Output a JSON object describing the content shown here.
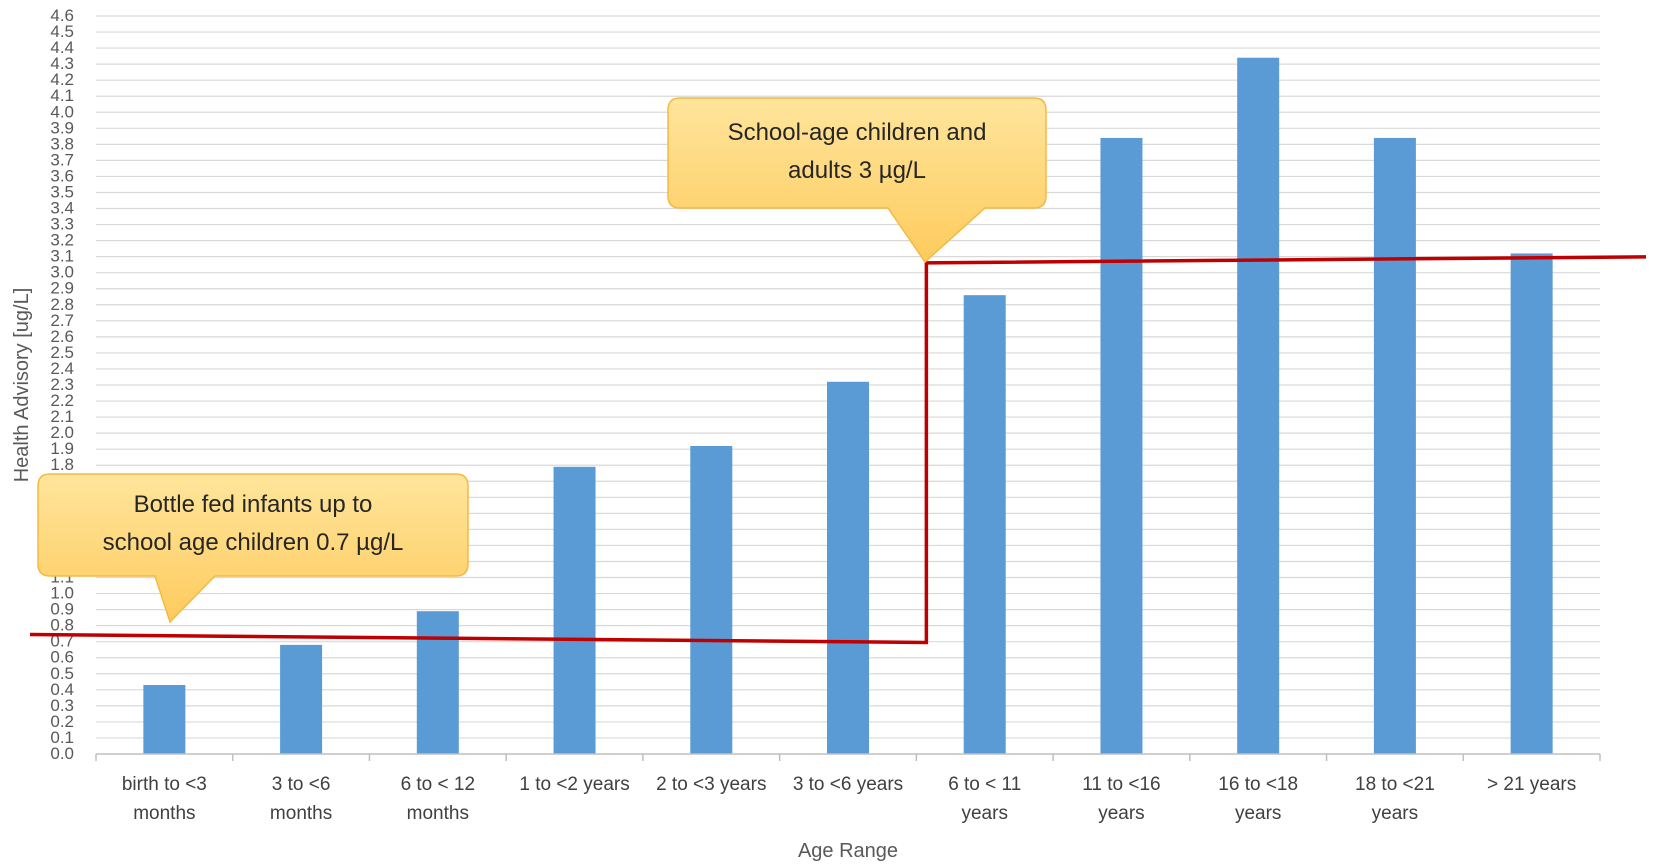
{
  "chart_data": {
    "type": "bar",
    "title": "",
    "xlabel": "Age Range",
    "ylabel": "Health Advisory [ug/L]",
    "ylim": [
      0,
      4.6
    ],
    "ytick_step": 0.1,
    "grid": true,
    "categories": [
      [
        "birth to <3",
        "months"
      ],
      [
        "3 to <6",
        "months"
      ],
      [
        "6 to < 12",
        "months"
      ],
      [
        "1 to <2 years"
      ],
      [
        "2 to <3 years"
      ],
      [
        "3 to <6 years"
      ],
      [
        "6 to < 11",
        "years"
      ],
      [
        "11 to <16",
        "years"
      ],
      [
        "16 to <18",
        "years"
      ],
      [
        "18 to <21",
        "years"
      ],
      [
        "> 21 years"
      ]
    ],
    "series": [
      {
        "values": [
          0.43,
          0.68,
          0.89,
          1.79,
          1.92,
          2.32,
          2.86,
          3.84,
          4.34,
          3.84,
          3.12
        ],
        "color": "#5b9bd5"
      }
    ],
    "threshold_line": {
      "color": "#c00000",
      "segments": [
        {
          "from_category": 0,
          "to_category": 5,
          "value": 0.72
        },
        {
          "from_category": 6,
          "to_category": 10,
          "value": 3.08
        }
      ]
    },
    "annotations": [
      {
        "lines": [
          "Bottle fed infants up to",
          "school age children 0.7 µg/L"
        ],
        "fill": "#ffd87a"
      },
      {
        "lines": [
          "School-age children and",
          "adults 3 µg/L"
        ],
        "fill": "#ffd87a"
      }
    ]
  }
}
